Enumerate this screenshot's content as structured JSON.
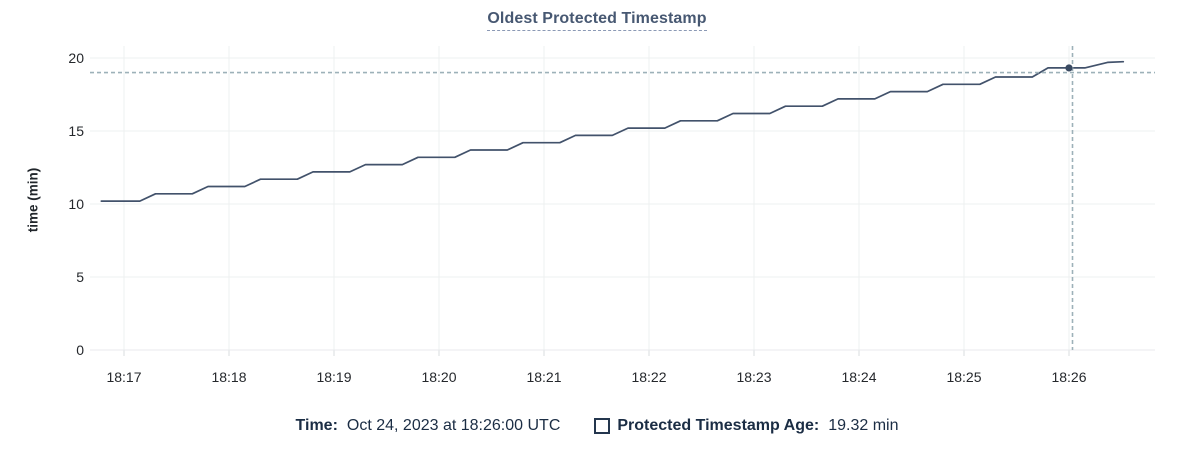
{
  "header": {
    "title": "Oldest Protected Timestamp"
  },
  "chart_data": {
    "type": "line",
    "title": "Oldest Protected Timestamp",
    "xlabel": "",
    "ylabel": "time (min)",
    "ylim": [
      0,
      20
    ],
    "yticks": [
      0,
      5,
      10,
      15,
      20
    ],
    "xtick_labels": [
      "18:17",
      "18:18",
      "18:19",
      "18:20",
      "18:21",
      "18:22",
      "18:23",
      "18:24",
      "18:25",
      "18:26"
    ],
    "grid": true,
    "legend_position": "bottom",
    "series": [
      {
        "name": "Protected Timestamp Age",
        "unit": "min",
        "points_t_sec_vs_min": [
          [
            -13,
            10.2
          ],
          [
            9,
            10.2
          ],
          [
            18,
            10.7
          ],
          [
            39,
            10.7
          ],
          [
            48,
            11.2
          ],
          [
            69,
            11.2
          ],
          [
            78,
            11.7
          ],
          [
            99,
            11.7
          ],
          [
            108,
            12.2
          ],
          [
            129,
            12.2
          ],
          [
            138,
            12.7
          ],
          [
            159,
            12.7
          ],
          [
            168,
            13.2
          ],
          [
            189,
            13.2
          ],
          [
            198,
            13.7
          ],
          [
            219,
            13.7
          ],
          [
            228,
            14.2
          ],
          [
            249,
            14.2
          ],
          [
            258,
            14.7
          ],
          [
            279,
            14.7
          ],
          [
            288,
            15.2
          ],
          [
            309,
            15.2
          ],
          [
            318,
            15.7
          ],
          [
            339,
            15.7
          ],
          [
            348,
            16.2
          ],
          [
            369,
            16.2
          ],
          [
            378,
            16.7
          ],
          [
            399,
            16.7
          ],
          [
            408,
            17.2
          ],
          [
            429,
            17.2
          ],
          [
            438,
            17.7
          ],
          [
            459,
            17.7
          ],
          [
            468,
            18.2
          ],
          [
            489,
            18.2
          ],
          [
            498,
            18.7
          ],
          [
            519,
            18.7
          ],
          [
            528,
            19.32
          ],
          [
            549,
            19.32
          ],
          [
            562,
            19.7
          ],
          [
            571,
            19.75
          ]
        ]
      }
    ],
    "hover_point": {
      "time": "18:26:00",
      "t_sec": 540,
      "value_min": 19.32
    },
    "crosshair": {
      "h_value_min": 19.0,
      "v_t_sec": 542
    }
  },
  "legend": {
    "time_label": "Time:",
    "time_value": "Oct 24, 2023 at 18:26:00 UTC",
    "series_checkbox": "unchecked-square",
    "series_label": "Protected Timestamp Age:",
    "series_value": "19.32 min"
  },
  "colors": {
    "line": "#42526b",
    "marker": "#3a4a62",
    "grid": "#eef0f1",
    "axis_line": "#e8eaec",
    "tick_stub": "#d9dcdf",
    "tick_text": "#25282c",
    "crosshair": "#9db1b9",
    "title": "#475872",
    "legend_text": "#1b2d44"
  }
}
